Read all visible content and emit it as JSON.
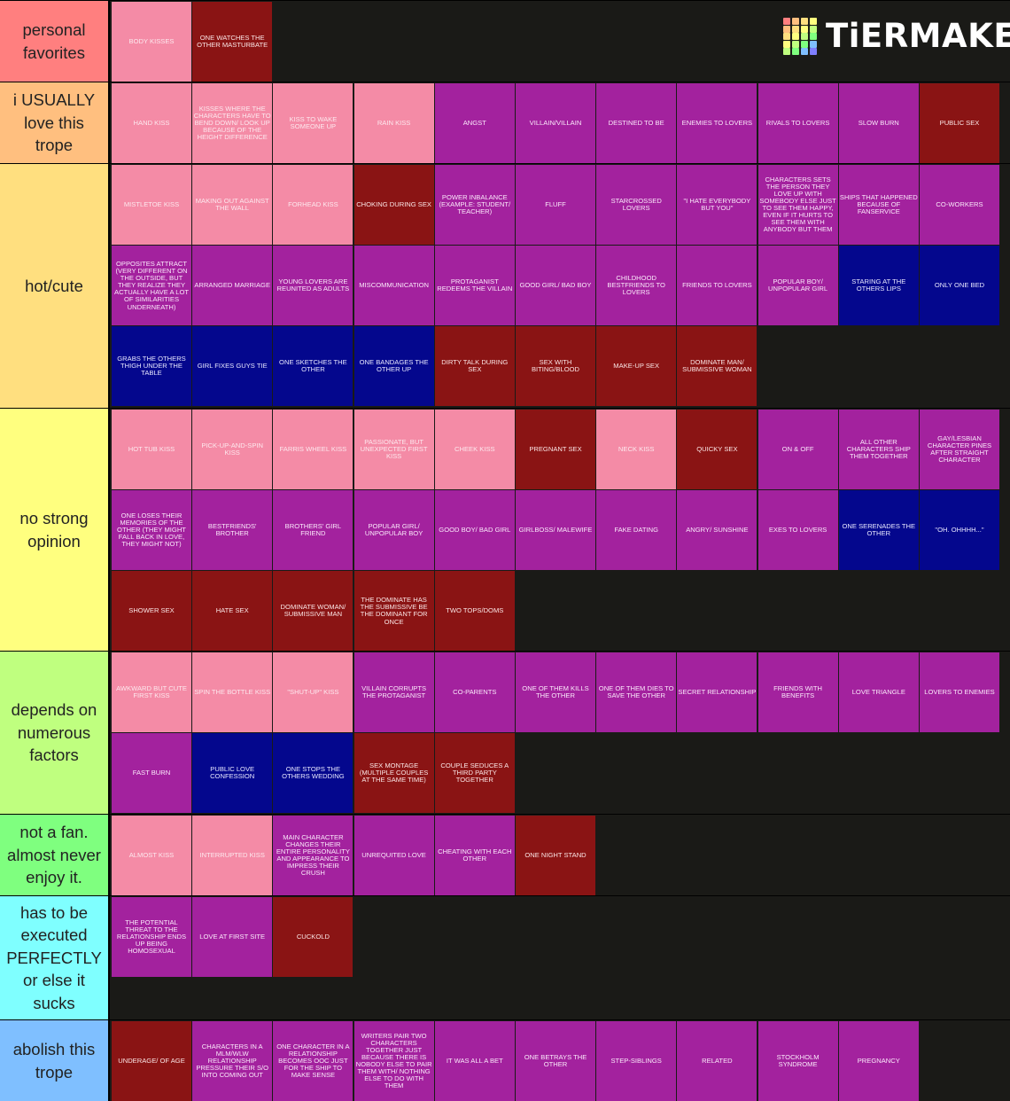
{
  "brand": "TiERMAKER",
  "colors": {
    "pink": "#f48ba6",
    "purple": "#a3229e",
    "maroon": "#8a1414",
    "navy": "#04078d",
    "background": "#1a1a17"
  },
  "tiers": [
    {
      "label": "personal favorites",
      "color": "#ff7f7f",
      "items": [
        {
          "text": "BODY KISSES",
          "color": "pink"
        },
        {
          "text": "ONE WATCHES THE OTHER MASTURBATE",
          "color": "maroon"
        }
      ]
    },
    {
      "label": "i USUALLY love this trope",
      "color": "#ffbf7f",
      "items": [
        {
          "text": "HAND KISS",
          "color": "pink"
        },
        {
          "text": "KISSES WHERE THE CHARACTERS HAVE TO BEND DOWN/ LOOK UP BECAUSE OF THE HEIGHT DIFFERENCE",
          "color": "pink"
        },
        {
          "text": "KISS TO WAKE SOMEONE UP",
          "color": "pink"
        },
        {
          "text": "RAIN KISS",
          "color": "pink"
        },
        {
          "text": "ANGST",
          "color": "purple"
        },
        {
          "text": "VILLAIN/VILLAIN",
          "color": "purple"
        },
        {
          "text": "DESTINED TO BE",
          "color": "purple"
        },
        {
          "text": "ENEMIES TO LOVERS",
          "color": "purple"
        },
        {
          "text": "RIVALS TO LOVERS",
          "color": "purple"
        },
        {
          "text": "SLOW BURN",
          "color": "purple"
        },
        {
          "text": "PUBLIC SEX",
          "color": "maroon"
        }
      ]
    },
    {
      "label": "hot/cute",
      "color": "#ffdf7f",
      "items": [
        {
          "text": "MISTLETOE KISS",
          "color": "pink"
        },
        {
          "text": "MAKING OUT AGAINST THE WALL",
          "color": "pink"
        },
        {
          "text": "FORHEAD KISS",
          "color": "pink"
        },
        {
          "text": "CHOKING DURING SEX",
          "color": "maroon"
        },
        {
          "text": "POWER INBALANCE (EXAMPLE: STUDENT/ TEACHER)",
          "color": "purple"
        },
        {
          "text": "FLUFF",
          "color": "purple"
        },
        {
          "text": "STARCROSSED LOVERS",
          "color": "purple"
        },
        {
          "text": "\"I HATE EVERYBODY BUT YOU\"",
          "color": "purple"
        },
        {
          "text": "CHARACTERS SETS THE PERSON THEY LOVE UP WITH SOMEBODY ELSE JUST TO SEE THEM HAPPY, EVEN IF IT HURTS TO SEE THEM WITH ANYBODY BUT THEM",
          "color": "purple"
        },
        {
          "text": "SHIPS THAT HAPPENED BECAUSE OF FANSERVICE",
          "color": "purple"
        },
        {
          "text": "CO-WORKERS",
          "color": "purple"
        },
        {
          "text": "OPPOSITES ATTRACT (VERY DIFFERENT ON THE OUTSIDE, BUT THEY REALIZE THEY ACTUALLY HAVE A LOT OF SIMILARITIES UNDERNEATH)",
          "color": "purple"
        },
        {
          "text": "ARRANGED MARRIAGE",
          "color": "purple"
        },
        {
          "text": "YOUNG LOVERS ARE REUNITED AS ADULTS",
          "color": "purple"
        },
        {
          "text": "MISCOMMUNICATION",
          "color": "purple"
        },
        {
          "text": "PROTAGANIST REDEEMS THE VILLAIN",
          "color": "purple"
        },
        {
          "text": "GOOD GIRL/ BAD BOY",
          "color": "purple"
        },
        {
          "text": "CHILDHOOD BESTFRIENDS TO LOVERS",
          "color": "purple"
        },
        {
          "text": "FRIENDS TO LOVERS",
          "color": "purple"
        },
        {
          "text": "POPULAR BOY/ UNPOPULAR GIRL",
          "color": "purple"
        },
        {
          "text": "STARING AT THE OTHERS LIPS",
          "color": "navy"
        },
        {
          "text": "ONLY ONE BED",
          "color": "navy"
        },
        {
          "text": "GRABS THE OTHERS THIGH UNDER THE TABLE",
          "color": "navy"
        },
        {
          "text": "GIRL FIXES GUYS TIE",
          "color": "navy"
        },
        {
          "text": "ONE SKETCHES THE OTHER",
          "color": "navy"
        },
        {
          "text": "ONE BANDAGES THE OTHER UP",
          "color": "navy"
        },
        {
          "text": "DIRTY TALK DURING SEX",
          "color": "maroon"
        },
        {
          "text": "SEX WITH BITING/BLOOD",
          "color": "maroon"
        },
        {
          "text": "MAKE-UP SEX",
          "color": "maroon"
        },
        {
          "text": "DOMINATE MAN/ SUBMISSIVE WOMAN",
          "color": "maroon"
        }
      ]
    },
    {
      "label": "no strong opinion",
      "color": "#ffff7f",
      "items": [
        {
          "text": "HOT TUB KISS",
          "color": "pink"
        },
        {
          "text": "PICK-UP-AND-SPIN KISS",
          "color": "pink"
        },
        {
          "text": "FARRIS WHEEL KISS",
          "color": "pink"
        },
        {
          "text": "PASSIONATE, BUT UNEXPECTED FIRST KISS",
          "color": "pink"
        },
        {
          "text": "CHEEK KISS",
          "color": "pink"
        },
        {
          "text": "PREGNANT SEX",
          "color": "maroon"
        },
        {
          "text": "NECK KISS",
          "color": "pink"
        },
        {
          "text": "QUICKY SEX",
          "color": "maroon"
        },
        {
          "text": "ON & OFF",
          "color": "purple"
        },
        {
          "text": "ALL OTHER CHARACTERS SHIP THEM TOGETHER",
          "color": "purple"
        },
        {
          "text": "GAY/LESBIAN CHARACTER PINES AFTER STRAIGHT CHARACTER",
          "color": "purple"
        },
        {
          "text": "ONE LOSES THEIR MEMORIES OF THE OTHER (THEY MIGHT FALL BACK IN LOVE, THEY MIGHT NOT)",
          "color": "purple"
        },
        {
          "text": "BESTFRIENDS' BROTHER",
          "color": "purple"
        },
        {
          "text": "BROTHERS' GIRL FRIEND",
          "color": "purple"
        },
        {
          "text": "POPULAR GIRL/ UNPOPULAR BOY",
          "color": "purple"
        },
        {
          "text": "GOOD BOY/ BAD GIRL",
          "color": "purple"
        },
        {
          "text": "GIRLBOSS/ MALEWIFE",
          "color": "purple"
        },
        {
          "text": "FAKE DATING",
          "color": "purple"
        },
        {
          "text": "ANGRY/ SUNSHINE",
          "color": "purple"
        },
        {
          "text": "EXES TO LOVERS",
          "color": "purple"
        },
        {
          "text": "ONE SERENADES THE OTHER",
          "color": "navy"
        },
        {
          "text": "\"oh. OHHHH...\"",
          "color": "navy"
        },
        {
          "text": "SHOWER SEX",
          "color": "maroon"
        },
        {
          "text": "HATE SEX",
          "color": "maroon"
        },
        {
          "text": "DOMINATE WOMAN/ SUBMISSIVE MAN",
          "color": "maroon"
        },
        {
          "text": "THE DOMINATE HAS THE SUBMISSIVE BE THE DOMINANT FOR ONCE",
          "color": "maroon"
        },
        {
          "text": "TWO TOPS/DOMS",
          "color": "maroon"
        }
      ]
    },
    {
      "label": "depends on numerous factors",
      "color": "#bfff7f",
      "items": [
        {
          "text": "AWKWARD BUT CUTE FIRST KISS",
          "color": "pink"
        },
        {
          "text": "SPIN THE BOTTLE KISS",
          "color": "pink"
        },
        {
          "text": "\"SHUT-UP\" KISS",
          "color": "pink"
        },
        {
          "text": "VILLAIN CORRUPTS THE PROTAGANIST",
          "color": "purple"
        },
        {
          "text": "CO-PARENTS",
          "color": "purple"
        },
        {
          "text": "ONE OF THEM KILLS THE OTHER",
          "color": "purple"
        },
        {
          "text": "ONE OF THEM DIES TO SAVE THE OTHER",
          "color": "purple"
        },
        {
          "text": "SECRET RELATIONSHIP",
          "color": "purple"
        },
        {
          "text": "FRIENDS WITH BENEFITS",
          "color": "purple"
        },
        {
          "text": "LOVE TRIANGLE",
          "color": "purple"
        },
        {
          "text": "LOVERS TO ENEMIES",
          "color": "purple"
        },
        {
          "text": "FAST BURN",
          "color": "purple"
        },
        {
          "text": "PUBLIC LOVE CONFESSION",
          "color": "navy"
        },
        {
          "text": "ONE STOPS THE OTHERS WEDDING",
          "color": "navy"
        },
        {
          "text": "SEX MONTAGE (MULTIPLE COUPLES AT THE SAME TIME)",
          "color": "maroon"
        },
        {
          "text": "COUPLE SEDUCES A THIRD PARTY TOGETHER",
          "color": "maroon"
        }
      ]
    },
    {
      "label": "not a fan. almost never enjoy it.",
      "color": "#7fff7f",
      "items": [
        {
          "text": "ALMOST KISS",
          "color": "pink"
        },
        {
          "text": "INTERRUPTED KISS",
          "color": "pink"
        },
        {
          "text": "MAIN CHARACTER CHANGES THEIR ENTIRE PERSONALITY AND APPEARANCE TO IMPRESS THEIR CRUSH",
          "color": "purple"
        },
        {
          "text": "UNREQUITED LOVE",
          "color": "purple"
        },
        {
          "text": "CHEATING WITH EACH OTHER",
          "color": "purple"
        },
        {
          "text": "ONE NIGHT STAND",
          "color": "maroon"
        }
      ]
    },
    {
      "label": "has to be executed PERFECTLY or else it sucks",
      "color": "#7fffff",
      "items": [
        {
          "text": "THE POTENTIAL THREAT TO THE RELATIONSHIP ENDS UP BEING HOMOSEXUAL",
          "color": "purple"
        },
        {
          "text": "LOVE AT FIRST SITE",
          "color": "purple"
        },
        {
          "text": "CUCKOLD",
          "color": "maroon"
        }
      ]
    },
    {
      "label": "abolish this trope",
      "color": "#7fbfff",
      "items": [
        {
          "text": "UNDERAGE/ OF AGE",
          "color": "maroon"
        },
        {
          "text": "CHARACTERS IN A MLM/WLW RELATIONSHIP PRESSURE THEIR S/O INTO COMING OUT",
          "color": "purple"
        },
        {
          "text": "ONE CHARACTER IN A RELATIONSHIP BECOMES OOC JUST FOR THE SHIP TO MAKE SENSE",
          "color": "purple"
        },
        {
          "text": "WRITERS PAIR TWO CHARACTERS TOGETHER JUST BECAUSE THERE IS NOBODY ELSE TO PAIR THEM WITH/ NOTHING ELSE TO DO WITH THEM",
          "color": "purple"
        },
        {
          "text": "IT WAS ALL A BET",
          "color": "purple"
        },
        {
          "text": "ONE BETRAYS THE OTHER",
          "color": "purple"
        },
        {
          "text": "STEP-SIBLINGS",
          "color": "purple"
        },
        {
          "text": "RELATED",
          "color": "purple"
        },
        {
          "text": "STOCKHOLM SYNDROME",
          "color": "purple"
        },
        {
          "text": "PREGNANCY",
          "color": "purple"
        }
      ]
    }
  ]
}
